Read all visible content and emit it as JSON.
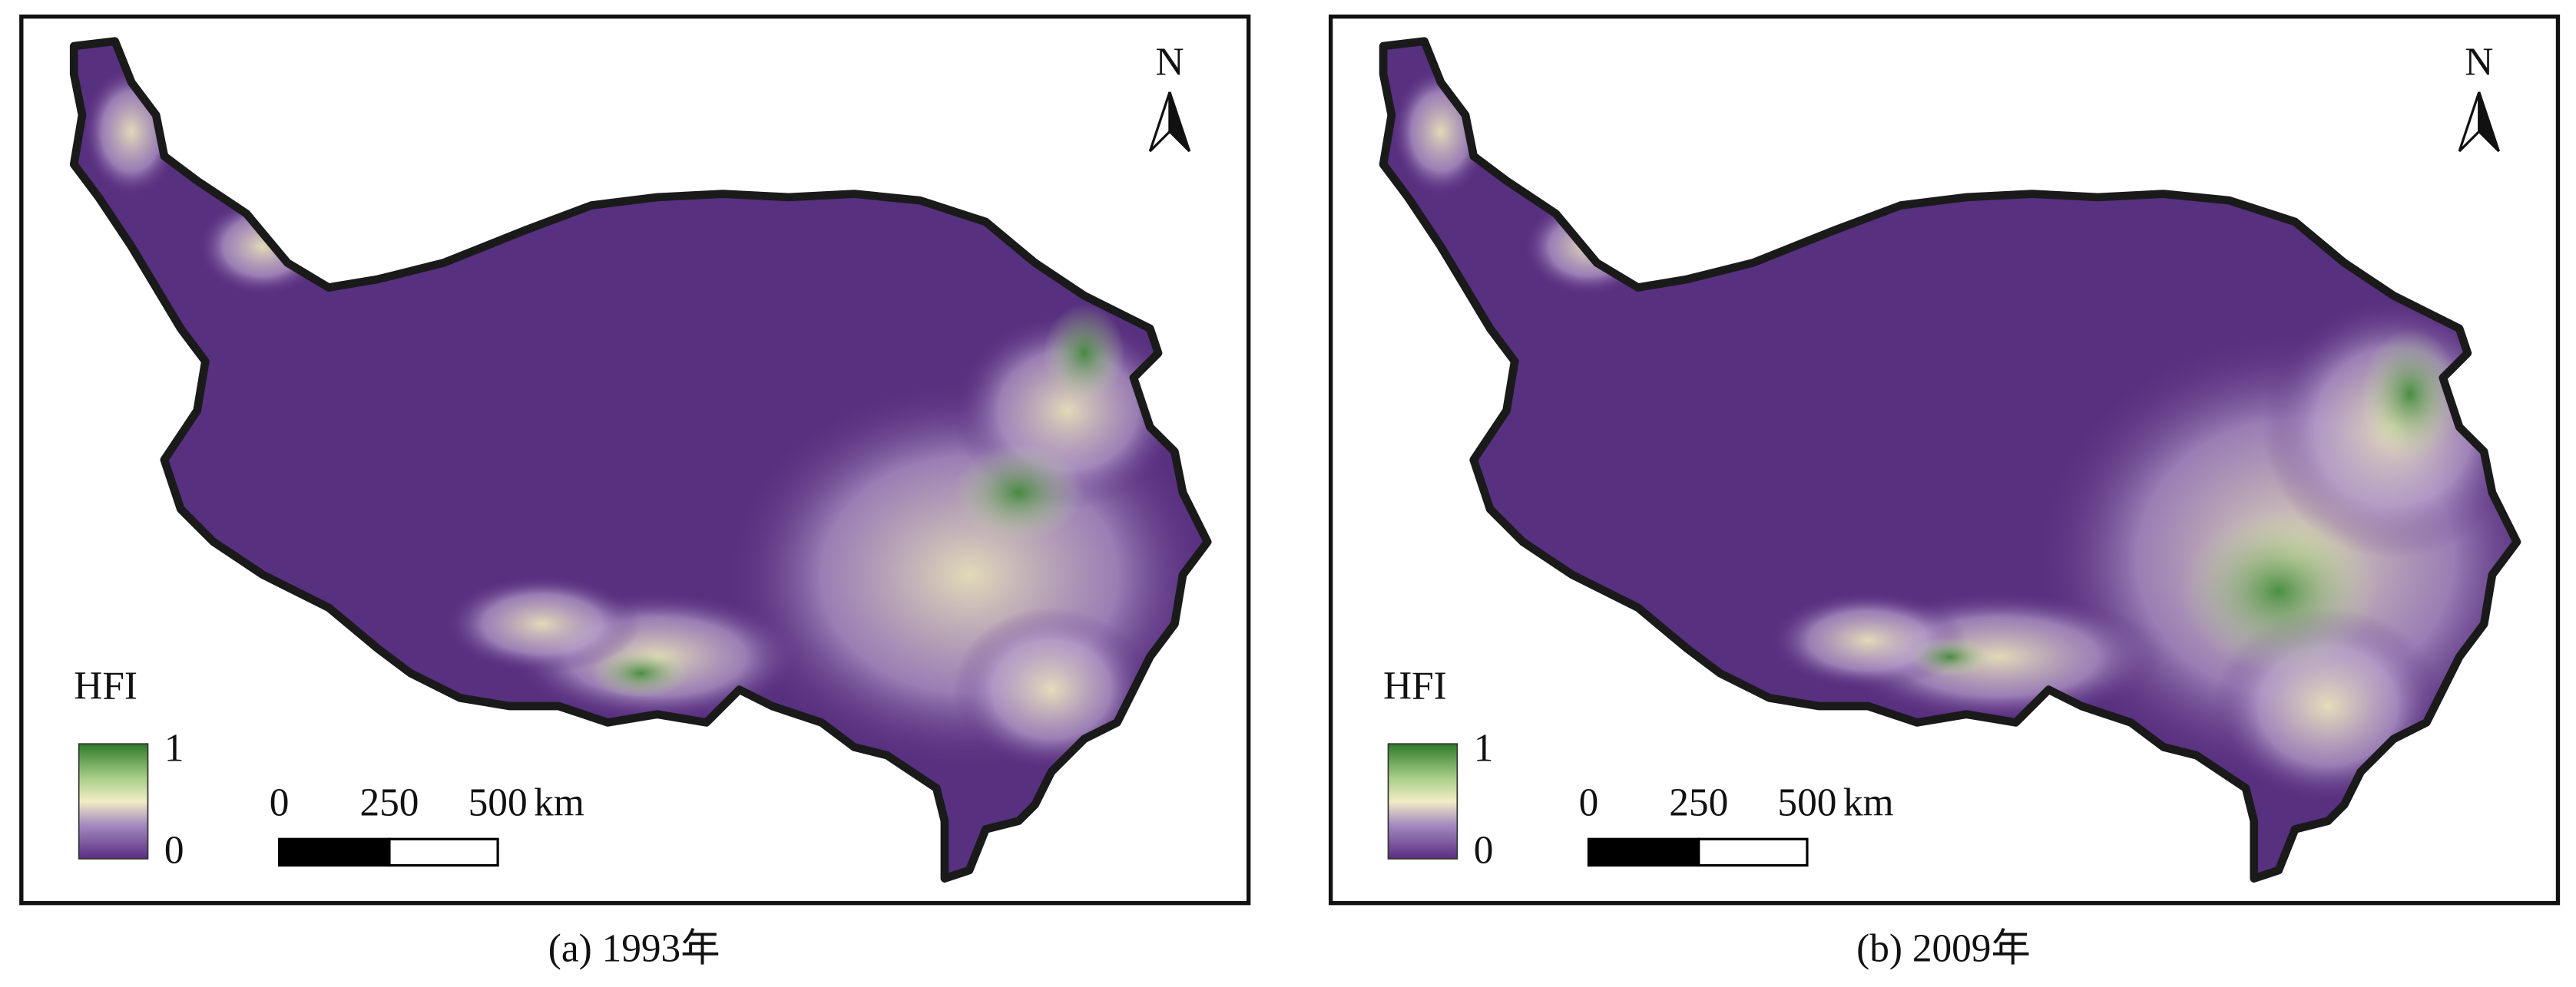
{
  "panels": [
    {
      "caption": "(a) 1993年",
      "north": "N",
      "legend": {
        "title": "HFI",
        "max": 1,
        "min": 0
      },
      "scale": {
        "ticks": [
          0,
          250,
          500
        ],
        "unit": "km"
      }
    },
    {
      "caption": "(b) 2009年",
      "north": "N",
      "legend": {
        "title": "HFI",
        "max": 1,
        "min": 0
      },
      "scale": {
        "ticks": [
          0,
          250,
          500
        ],
        "unit": "km"
      }
    }
  ]
}
